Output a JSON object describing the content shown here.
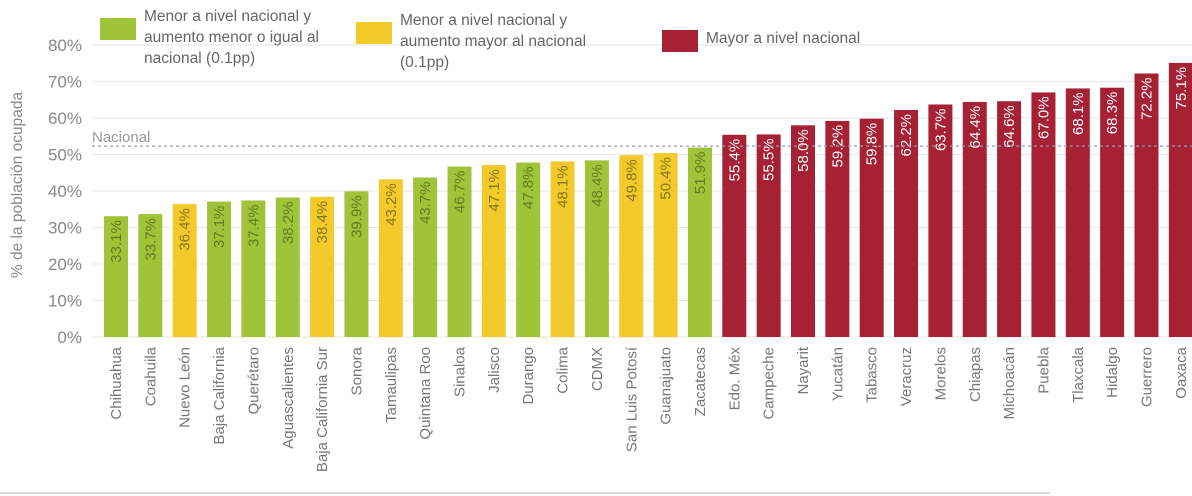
{
  "chart_data": {
    "type": "bar",
    "ylabel": "% de la población ocupada",
    "ylim": [
      0,
      80
    ],
    "yticks": [
      "0%",
      "10%",
      "20%",
      "30%",
      "40%",
      "50%",
      "60%",
      "70%",
      "80%"
    ],
    "grid": true,
    "reference_line": {
      "label": "Nacional",
      "value": 52.3
    },
    "legend": [
      {
        "label": "Menor a nivel nacional y aumento menor o igual al nacional (0.1pp)",
        "color": "#9fc43a"
      },
      {
        "label": "Menor a nivel nacional y aumento mayor al nacional (0.1pp)",
        "color": "#f2ca2c"
      },
      {
        "label": "Mayor a nivel nacional",
        "color": "#a52133"
      }
    ],
    "categories": [
      "Chihuahua",
      "Coahuila",
      "Nuevo León",
      "Baja California",
      "Querétaro",
      "Aguascalientes",
      "Baja California Sur",
      "Sonora",
      "Tamaulipas",
      "Quintana Roo",
      "Sinaloa",
      "Jalisco",
      "Durango",
      "Colima",
      "CDMX",
      "San Luis Potosí",
      "Guanajuato",
      "Zacatecas",
      "Edo. Méx",
      "Campeche",
      "Nayarit",
      "Yucatán",
      "Tabasco",
      "Veracruz",
      "Morelos",
      "Chiapas",
      "Michoacán",
      "Puebla",
      "Tlaxcala",
      "Hidalgo",
      "Guerrero",
      "Oaxaca"
    ],
    "values": [
      33.1,
      33.7,
      36.4,
      37.1,
      37.4,
      38.2,
      38.4,
      39.9,
      43.2,
      43.7,
      46.7,
      47.1,
      47.8,
      48.1,
      48.4,
      49.8,
      50.4,
      51.9,
      55.4,
      55.5,
      58.0,
      59.2,
      59.8,
      62.2,
      63.7,
      64.4,
      64.6,
      67.0,
      68.1,
      68.3,
      72.2,
      75.1
    ],
    "value_labels": [
      "33.1%",
      "33.7%",
      "36.4%",
      "37.1%",
      "37.4%",
      "38.2%",
      "38.4%",
      "39.9%",
      "43.2%",
      "43.7%",
      "46.7%",
      "47.1%",
      "47.8%",
      "48.1%",
      "48.4%",
      "49.8%",
      "50.4%",
      "51.9%",
      "55.4%",
      "55.5%",
      "58.0%",
      "59.2%",
      "59.8%",
      "62.2%",
      "63.7%",
      "64.4%",
      "64.6%",
      "67.0%",
      "68.1%",
      "68.3%",
      "72.2%",
      "75.1%"
    ],
    "groups": [
      0,
      0,
      1,
      0,
      0,
      0,
      1,
      0,
      1,
      0,
      0,
      1,
      0,
      1,
      0,
      1,
      1,
      0,
      2,
      2,
      2,
      2,
      2,
      2,
      2,
      2,
      2,
      2,
      2,
      2,
      2,
      2
    ]
  }
}
